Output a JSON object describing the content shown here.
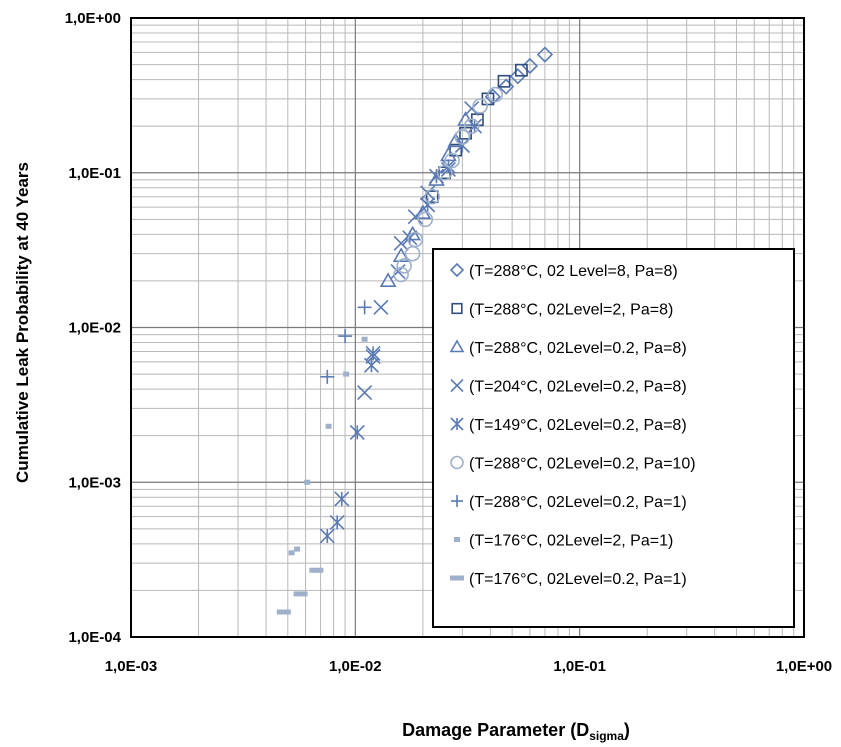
{
  "chart_data": {
    "type": "scatter",
    "xscale": "log",
    "yscale": "log",
    "xlim": [
      0.001,
      1
    ],
    "ylim": [
      0.0001,
      1
    ],
    "x_ticks": [
      "1,0E-03",
      "1,0E-02",
      "1,0E-01",
      "1,0E+00"
    ],
    "y_ticks": [
      "1,0E-04",
      "1,0E-03",
      "1,0E-02",
      "1,0E-01",
      "1,0E+00"
    ],
    "xlabel": "Damage Parameter (D",
    "xlabel_sub": "sigma",
    "xlabel_end": ")",
    "ylabel": "Cumulative Leak Probability at 40  Years",
    "grid": true,
    "legend_position": "bottom-right",
    "colors": {
      "dark": "#2e4d7f",
      "mid": "#5a7ab6",
      "light": "#9fb0ca"
    },
    "series": [
      {
        "name": "(T=288°C, 02 Level=8, Pa=8)",
        "marker": "diamond",
        "color": "#5a7ab6",
        "points": [
          [
            0.041,
            0.31
          ],
          [
            0.047,
            0.36
          ],
          [
            0.053,
            0.42
          ],
          [
            0.06,
            0.49
          ],
          [
            0.07,
            0.58
          ]
        ]
      },
      {
        "name": "(T=288°C, 02Level=2, Pa=8)",
        "marker": "square",
        "color": "#2e4d7f",
        "points": [
          [
            0.022,
            0.07
          ],
          [
            0.025,
            0.1
          ],
          [
            0.028,
            0.14
          ],
          [
            0.031,
            0.18
          ],
          [
            0.035,
            0.22
          ],
          [
            0.039,
            0.3
          ],
          [
            0.046,
            0.39
          ],
          [
            0.055,
            0.46
          ]
        ]
      },
      {
        "name": "(T=288°C, 02Level=0.2, Pa=8)",
        "marker": "triangle",
        "color": "#5a7ab6",
        "points": [
          [
            0.014,
            0.02
          ],
          [
            0.016,
            0.029
          ],
          [
            0.018,
            0.04
          ],
          [
            0.02,
            0.055
          ],
          [
            0.023,
            0.09
          ],
          [
            0.026,
            0.13
          ],
          [
            0.028,
            0.16
          ],
          [
            0.031,
            0.22
          ]
        ]
      },
      {
        "name": "(T=204°C, 02Level=0.2, Pa=8)",
        "marker": "x",
        "color": "#5a7ab6",
        "points": [
          [
            0.011,
            0.0038
          ],
          [
            0.012,
            0.0065
          ],
          [
            0.013,
            0.0135
          ],
          [
            0.0155,
            0.023
          ],
          [
            0.016,
            0.035
          ],
          [
            0.0185,
            0.052
          ],
          [
            0.021,
            0.074
          ],
          [
            0.026,
            0.105
          ],
          [
            0.033,
            0.26
          ]
        ]
      },
      {
        "name": "(T=149°C, 02Level=0.2, Pa=8)",
        "marker": "asterisk",
        "color": "#5a7ab6",
        "points": [
          [
            0.0075,
            0.00045
          ],
          [
            0.0083,
            0.00055
          ],
          [
            0.0087,
            0.00078
          ],
          [
            0.0102,
            0.0021
          ],
          [
            0.0118,
            0.0057
          ],
          [
            0.012,
            0.0068
          ],
          [
            0.0175,
            0.038
          ],
          [
            0.021,
            0.062
          ],
          [
            0.023,
            0.095
          ],
          [
            0.026,
            0.11
          ],
          [
            0.03,
            0.15
          ],
          [
            0.034,
            0.2
          ]
        ]
      },
      {
        "name": "(T=288°C, 02Level=0.2, Pa=10)",
        "marker": "circle",
        "color": "#9fb0ca",
        "points": [
          [
            0.016,
            0.022
          ],
          [
            0.0165,
            0.025
          ],
          [
            0.018,
            0.03
          ],
          [
            0.0185,
            0.037
          ],
          [
            0.0205,
            0.05
          ],
          [
            0.022,
            0.07
          ],
          [
            0.025,
            0.1
          ],
          [
            0.027,
            0.12
          ],
          [
            0.03,
            0.17
          ],
          [
            0.033,
            0.2
          ],
          [
            0.036,
            0.27
          ],
          [
            0.042,
            0.32
          ]
        ]
      },
      {
        "name": "(T=288°C, 02Level=0.2, Pa=1)",
        "marker": "plus",
        "color": "#5a7ab6",
        "points": [
          [
            0.0075,
            0.0048
          ],
          [
            0.009,
            0.0088
          ],
          [
            0.011,
            0.0135
          ]
        ]
      },
      {
        "name": "(T=176°C, 02Level=2, Pa=1)",
        "marker": "smallsquare",
        "color": "#9fb0ca",
        "points": [
          [
            0.0052,
            0.00035
          ],
          [
            0.0055,
            0.00037
          ],
          [
            0.0061,
            0.001
          ],
          [
            0.0076,
            0.0023
          ],
          [
            0.0091,
            0.005
          ],
          [
            0.011,
            0.0084
          ]
        ]
      },
      {
        "name": "(T=176°C, 02Level=0.2, Pa=1)",
        "marker": "dash",
        "color": "#9fb0ca",
        "points": [
          [
            0.0048,
            0.000145
          ],
          [
            0.0057,
            0.00019
          ],
          [
            0.0067,
            0.00027
          ]
        ]
      }
    ]
  }
}
